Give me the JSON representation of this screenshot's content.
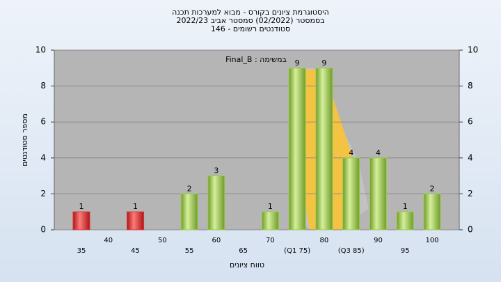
{
  "chart_data": {
    "type": "bar",
    "title": "היסטוגרמת ציונים בקורס - מבוא למערכות תכנה",
    "subtitle": "בסמסטר (02/2022) סמסטר אביב 2022/23",
    "subtitle2": "סטודנטים רשומים - 146",
    "annotation": "במשימה : Final_B",
    "y_label": "מספר סטודנטים",
    "x_label": "טווח ציונים",
    "categories": [
      "35",
      "40",
      "45",
      "50",
      "55",
      "60",
      "65",
      "70",
      "(Q1 75)",
      "80",
      "(Q3 85)",
      "90",
      "95",
      "100"
    ],
    "values": [
      1,
      0,
      1,
      0,
      2,
      3,
      0,
      1,
      9,
      9,
      4,
      4,
      1,
      2
    ],
    "colors": [
      "#e03030",
      "#9acd4a",
      "#e03030",
      "#9acd4a",
      "#9acd4a",
      "#9acd4a",
      "#9acd4a",
      "#9acd4a",
      "#9acd4a",
      "#9acd4a",
      "#9acd4a",
      "#9acd4a",
      "#9acd4a",
      "#9acd4a"
    ],
    "ylim": [
      0,
      10
    ],
    "yticks": [
      0,
      2,
      4,
      6,
      8,
      10
    ],
    "grid": true
  }
}
